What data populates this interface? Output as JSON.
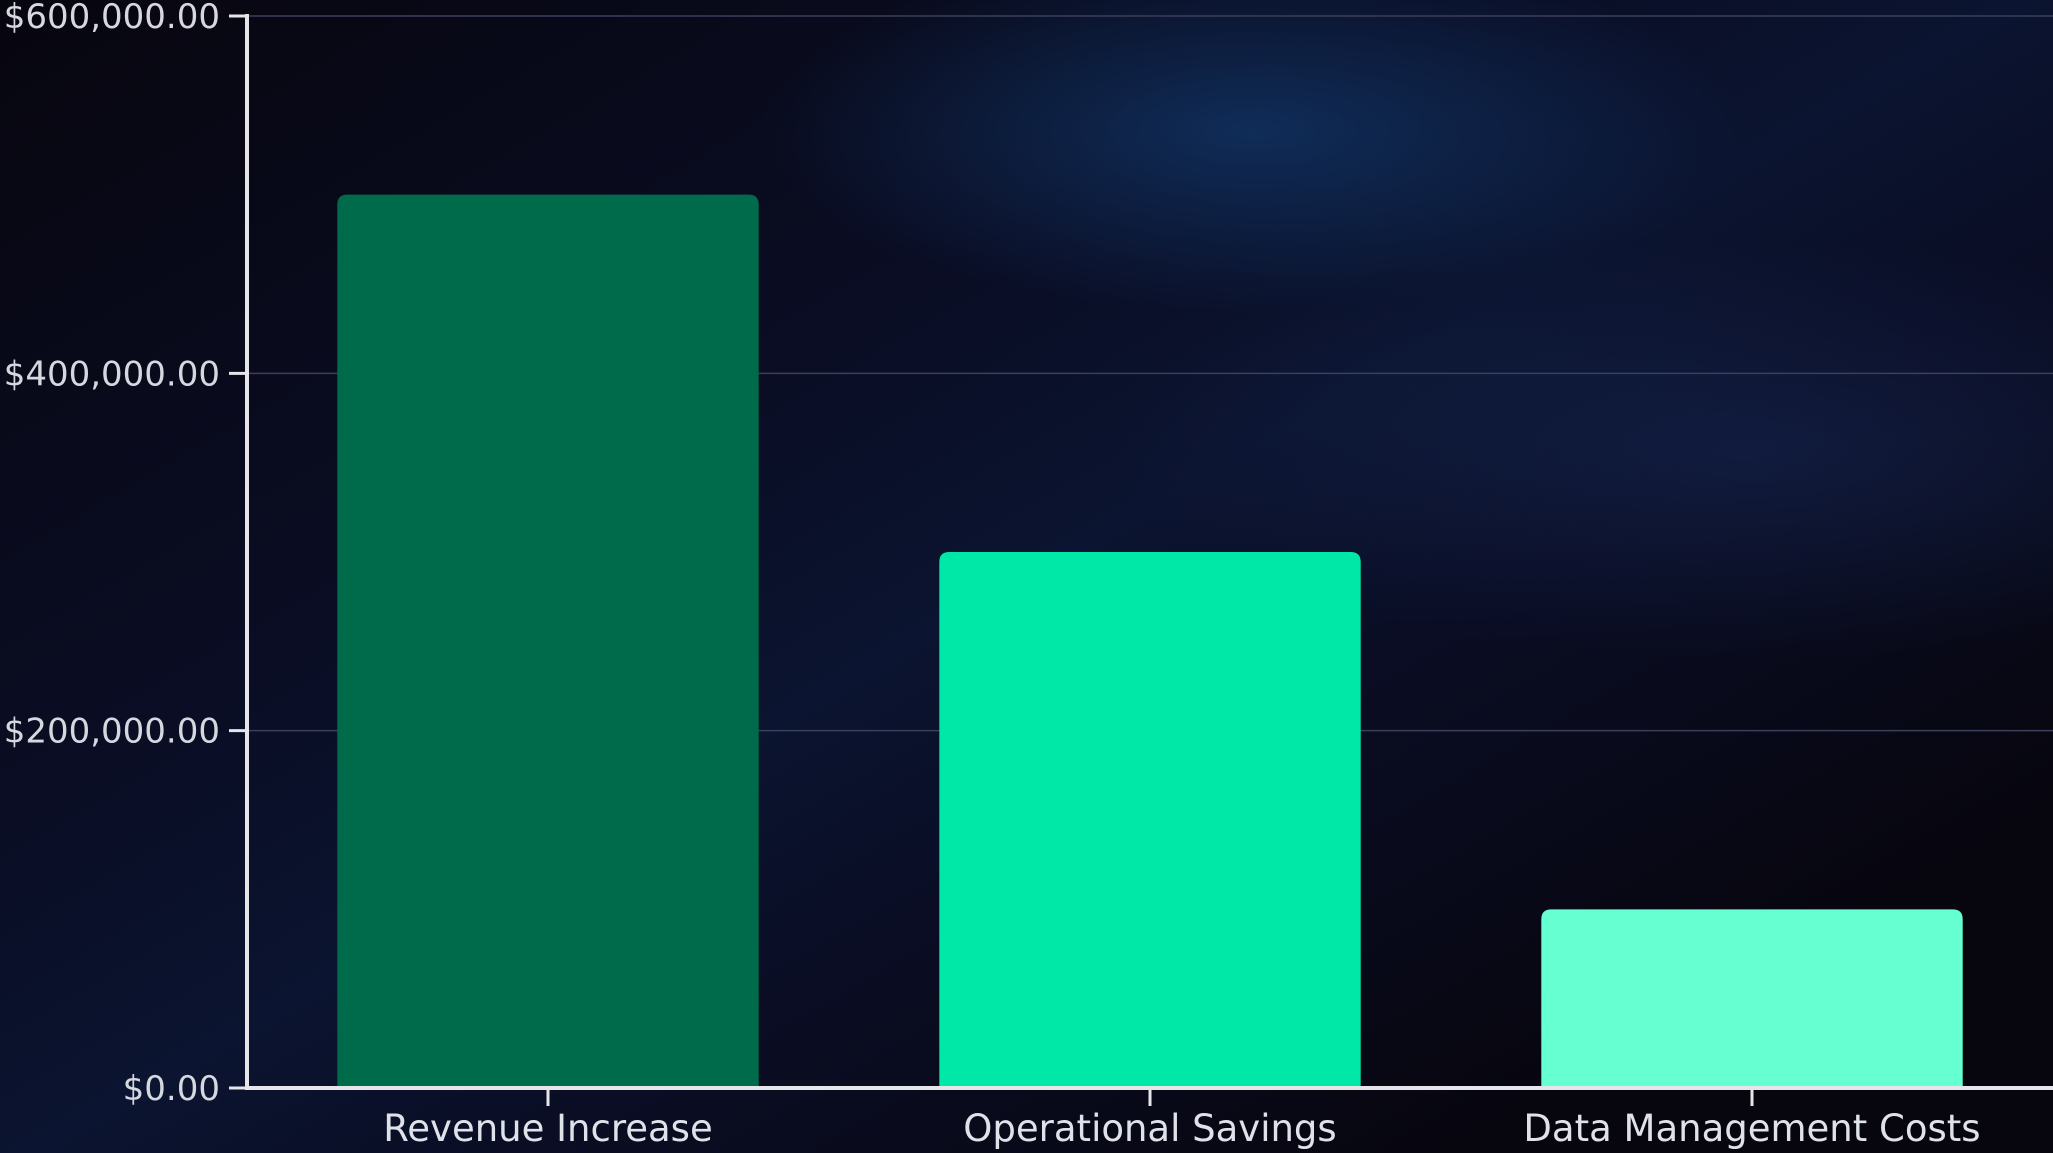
{
  "chart_data": {
    "type": "bar",
    "categories": [
      "Revenue Increase",
      "Operational Savings",
      "Data Management Costs"
    ],
    "values": [
      500000,
      300000,
      100000
    ],
    "bar_colors": [
      "#006b4a",
      "#00e8a8",
      "#66ffd1"
    ],
    "title": "",
    "xlabel": "",
    "ylabel": "",
    "ylim": [
      0,
      600000
    ],
    "yticks": [
      {
        "value": 0,
        "label": "$0.00"
      },
      {
        "value": 200000,
        "label": "$200,000.00"
      },
      {
        "value": 400000,
        "label": "$400,000.00"
      },
      {
        "value": 600000,
        "label": "$600,000.00"
      }
    ],
    "grid": true,
    "legend": "none",
    "colors": {
      "axis": "#e6e6ea",
      "grid": "#3a3f5a"
    }
  }
}
